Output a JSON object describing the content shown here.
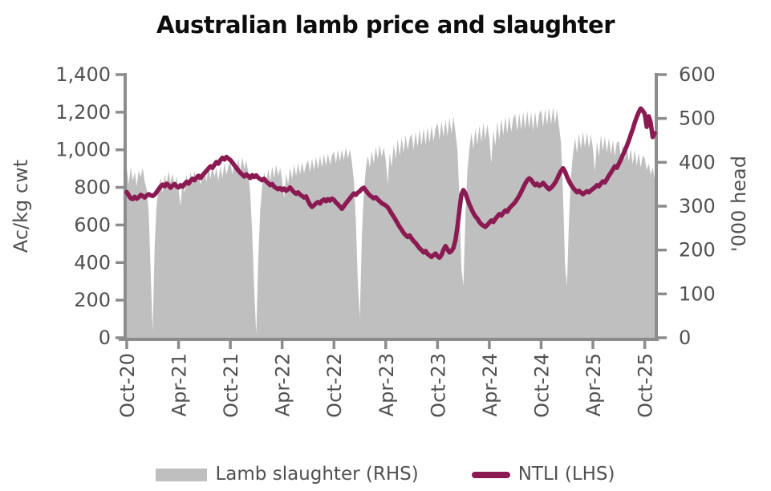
{
  "title": "Australian lamb price and slaughter",
  "colors": {
    "background": "#FFFFFF",
    "axis_line": "#8C8C8C",
    "axis_label": "#515151",
    "title_text": "#0D0D0D",
    "slaughter_area": "#BFBFBF",
    "ntli_line": "#8C1A52"
  },
  "chart_data": {
    "type": "area",
    "subtype": "combo-area-line",
    "x_unit": "weekly, Oct-2020 to Nov-2025",
    "grid": "off",
    "legend_position": "bottom",
    "x_tick_labels": [
      "Oct-20",
      "Apr-21",
      "Oct-21",
      "Apr-22",
      "Oct-22",
      "Apr-23",
      "Oct-23",
      "Apr-24",
      "Oct-24",
      "Apr-25",
      "Oct-25"
    ],
    "x_tick_months": [
      0,
      6,
      12,
      18,
      24,
      30,
      36,
      42,
      48,
      54,
      60
    ],
    "left_axis": {
      "title": "Ac/kg cwt",
      "min": 0,
      "max": 1400,
      "tick_step": 200,
      "tick_values": [
        0,
        200,
        400,
        600,
        800,
        1000,
        1200,
        1400
      ],
      "tick_labels": [
        "0",
        "200",
        "400",
        "600",
        "800",
        "1,000",
        "1,200",
        "1,400"
      ]
    },
    "right_axis": {
      "title": "'000 head",
      "min": 0,
      "max": 600,
      "tick_step": 100,
      "tick_values": [
        0,
        100,
        200,
        300,
        400,
        500,
        600
      ],
      "tick_labels": [
        "0",
        "100",
        "200",
        "300",
        "400",
        "500",
        "600"
      ]
    },
    "series": [
      {
        "name": "Lamb slaughter (RHS)",
        "type": "area",
        "axis": "right",
        "color": "#BFBFBF",
        "values": [
          385,
          350,
          390,
          358,
          378,
          345,
          382,
          366,
          388,
          356,
          338,
          288,
          150,
          15,
          210,
          302,
          342,
          365,
          330,
          372,
          348,
          380,
          354,
          375,
          342,
          368,
          338,
          300,
          356,
          330,
          372,
          346,
          378,
          352,
          380,
          358,
          375,
          348,
          370,
          385,
          355,
          390,
          362,
          395,
          366,
          388,
          358,
          392,
          364,
          398,
          372,
          390,
          400,
          372,
          405,
          378,
          408,
          382,
          412,
          385,
          405,
          375,
          330,
          238,
          108,
          8,
          180,
          292,
          345,
          378,
          348,
          385,
          358,
          390,
          364,
          395,
          368,
          388,
          358,
          318,
          375,
          350,
          388,
          362,
          395,
          368,
          398,
          372,
          400,
          375,
          395,
          405,
          378,
          408,
          382,
          412,
          385,
          415,
          388,
          418,
          392,
          420,
          395,
          415,
          425,
          398,
          428,
          402,
          430,
          405,
          435,
          408,
          430,
          400,
          358,
          268,
          128,
          45,
          230,
          332,
          385,
          415,
          388,
          425,
          398,
          435,
          408,
          440,
          412,
          435,
          405,
          352,
          422,
          388,
          442,
          408,
          452,
          415,
          458,
          422,
          462,
          428,
          455,
          465,
          428,
          470,
          435,
          475,
          438,
          478,
          440,
          480,
          445,
          484,
          448,
          478,
          490,
          452,
          494,
          458,
          498,
          460,
          502,
          465,
          505,
          468,
          428,
          315,
          158,
          118,
          280,
          380,
          432,
          468,
          430,
          478,
          440,
          484,
          446,
          490,
          452,
          486,
          455,
          398,
          472,
          438,
          492,
          452,
          500,
          462,
          504,
          466,
          506,
          470,
          500,
          510,
          470,
          512,
          474,
          515,
          476,
          518,
          478,
          514,
          472,
          516,
          475,
          510,
          520,
          480,
          522,
          484,
          524,
          486,
          526,
          488,
          520,
          482,
          445,
          325,
          165,
          118,
          268,
          368,
          418,
          456,
          420,
          466,
          430,
          470,
          434,
          468,
          432,
          462,
          432,
          378,
          448,
          412,
          462,
          426,
          458,
          422,
          455,
          418,
          450,
          414,
          445,
          448,
          412,
          442,
          406,
          438,
          402,
          432,
          396,
          428,
          392,
          422,
          388,
          415,
          410,
          382,
          398,
          372,
          388,
          362
        ]
      },
      {
        "name": "NTLI (LHS)",
        "type": "line",
        "axis": "left",
        "color": "#8C1A52",
        "stroke_width": 5.5,
        "values": [
          775,
          758,
          742,
          738,
          750,
          740,
          748,
          760,
          754,
          746,
          756,
          764,
          758,
          754,
          762,
          775,
          790,
          805,
          815,
          806,
          820,
          812,
          798,
          810,
          818,
          806,
          800,
          812,
          804,
          818,
          830,
          820,
          835,
          846,
          838,
          852,
          862,
          850,
          864,
          876,
          888,
          900,
          912,
          904,
          920,
          935,
          926,
          945,
          958,
          948,
          962,
          954,
          946,
          932,
          918,
          904,
          890,
          878,
          868,
          858,
          870,
          860,
          850,
          865,
          856,
          864,
          852,
          844,
          838,
          846,
          832,
          822,
          812,
          818,
          804,
          796,
          790,
          796,
          786,
          794,
          782,
          790,
          800,
          786,
          774,
          766,
          774,
          762,
          754,
          746,
          752,
          728,
          708,
          696,
          705,
          716,
          722,
          714,
          728,
          736,
          726,
          738,
          730,
          740,
          734,
          720,
          710,
          698,
          686,
          700,
          715,
          728,
          742,
          756,
          768,
          760,
          772,
          780,
          792,
          798,
          784,
          770,
          758,
          750,
          742,
          748,
          736,
          726,
          716,
          710,
          704,
          694,
          678,
          660,
          644,
          626,
          608,
          590,
          574,
          558,
          546,
          536,
          544,
          528,
          514,
          504,
          490,
          476,
          466,
          454,
          462,
          446,
          438,
          430,
          440,
          448,
          434,
          426,
          440,
          468,
          488,
          470,
          454,
          462,
          478,
          520,
          592,
          682,
          762,
          786,
          768,
          738,
          708,
          686,
          664,
          646,
          634,
          616,
          604,
          596,
          590,
          600,
          612,
          624,
          616,
          632,
          645,
          658,
          650,
          664,
          678,
          670,
          688,
          700,
          710,
          722,
          738,
          756,
          776,
          798,
          820,
          838,
          848,
          840,
          824,
          812,
          820,
          808,
          814,
          824,
          812,
          800,
          790,
          798,
          810,
          824,
          844,
          868,
          888,
          902,
          884,
          858,
          834,
          814,
          798,
          786,
          774,
          782,
          772,
          764,
          772,
          780,
          774,
          784,
          792,
          800,
          812,
          806,
          820,
          832,
          826,
          844,
          862,
          878,
          895,
          912,
          904,
          925,
          948,
          972,
          995,
          1020,
          1048,
          1080,
          1110,
          1145,
          1175,
          1200,
          1220,
          1208,
          1192,
          1122,
          1178,
          1145,
          1068,
          1088
        ]
      }
    ]
  }
}
